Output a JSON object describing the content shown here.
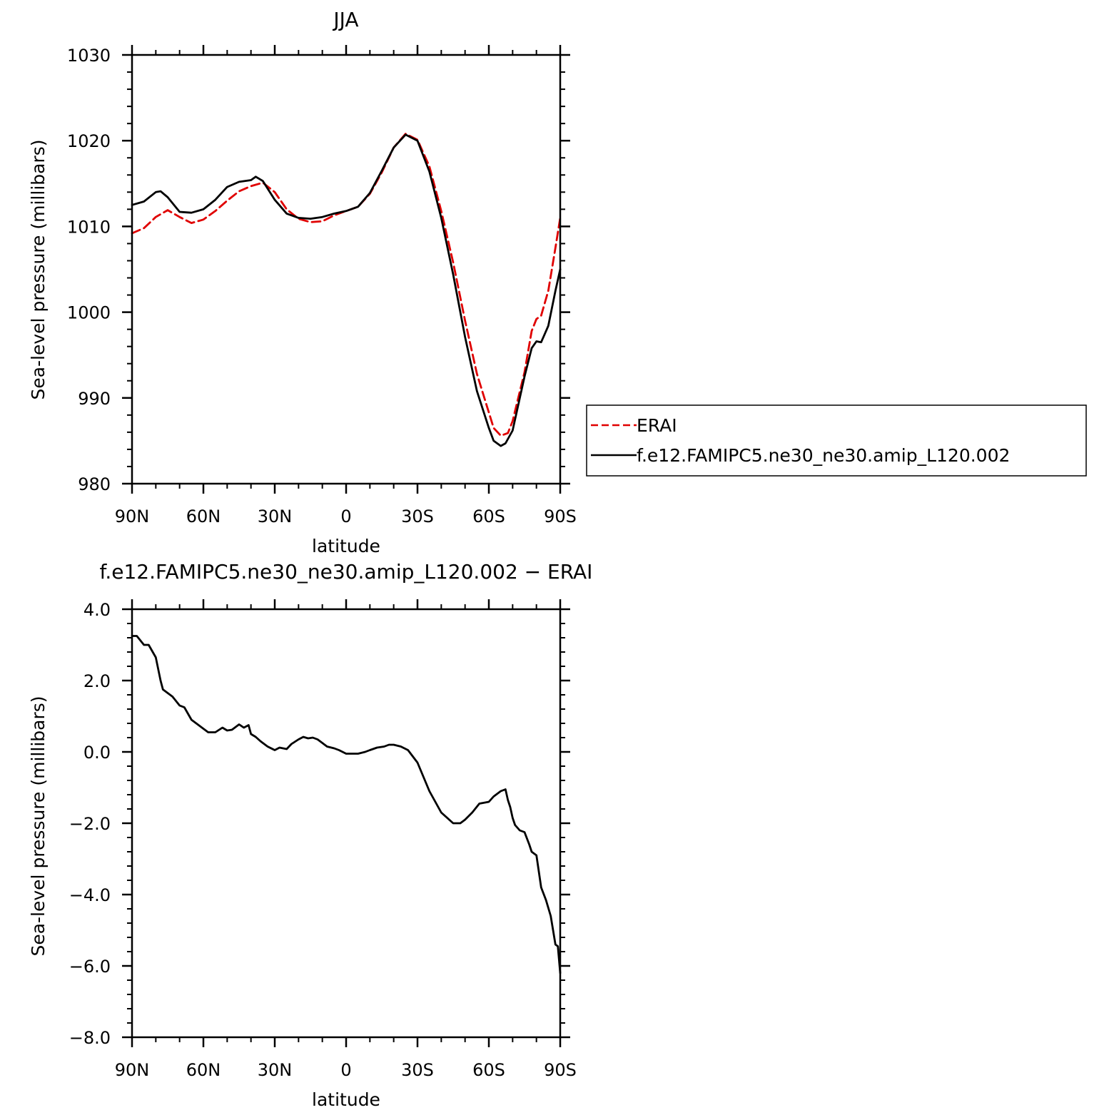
{
  "chart_data": [
    {
      "type": "line",
      "title": "JJA",
      "xlabel": "latitude",
      "ylabel": "Sea-level pressure (millibars)",
      "xlim": [
        90,
        -90
      ],
      "ylim": [
        980,
        1030
      ],
      "x_tick_values": [
        90,
        60,
        30,
        0,
        -30,
        -60,
        -90
      ],
      "x_tick_labels": [
        "90N",
        "60N",
        "30N",
        "0",
        "30S",
        "60S",
        "90S"
      ],
      "y_tick_values": [
        980,
        990,
        1000,
        1010,
        1020,
        1030
      ],
      "y_tick_labels": [
        "980",
        "990",
        "1000",
        "1010",
        "1020",
        "1030"
      ],
      "grid": false,
      "legend": "right",
      "series": [
        {
          "name": "ERAI",
          "color": "#e00000",
          "dash": true,
          "x": [
            90,
            85,
            80,
            75,
            70,
            65,
            60,
            55,
            50,
            45,
            40,
            35,
            30,
            25,
            20,
            15,
            10,
            5,
            0,
            -5,
            -10,
            -15,
            -20,
            -25,
            -30,
            -35,
            -40,
            -45,
            -50,
            -55,
            -60,
            -62,
            -65,
            -68,
            -70,
            -75,
            -78,
            -80,
            -82,
            -85,
            -88,
            -90
          ],
          "y": [
            1009.2,
            1009.8,
            1011.1,
            1011.9,
            1011.1,
            1010.4,
            1010.8,
            1011.8,
            1013.0,
            1014.1,
            1014.7,
            1015.1,
            1014.0,
            1012.0,
            1010.9,
            1010.5,
            1010.6,
            1011.3,
            1011.8,
            1012.3,
            1013.8,
            1016.3,
            1019.2,
            1020.8,
            1020.1,
            1017.0,
            1011.8,
            1005.8,
            999.0,
            992.8,
            988.3,
            986.5,
            985.6,
            985.9,
            987.3,
            993.0,
            997.8,
            999.2,
            999.6,
            1002.5,
            1007.5,
            1011.0
          ]
        },
        {
          "name": "f.e12.FAMIPC5.ne30_ne30.amip_L120.002",
          "color": "#000000",
          "dash": false,
          "x": [
            90,
            85,
            80,
            78,
            75,
            70,
            65,
            60,
            55,
            50,
            45,
            40,
            38,
            35,
            30,
            25,
            20,
            15,
            10,
            5,
            0,
            -5,
            -10,
            -15,
            -20,
            -25,
            -30,
            -35,
            -40,
            -45,
            -50,
            -55,
            -60,
            -62,
            -65,
            -67,
            -70,
            -75,
            -78,
            -80,
            -82,
            -85,
            -88,
            -90
          ],
          "y": [
            1012.5,
            1012.9,
            1014.0,
            1014.1,
            1013.4,
            1011.7,
            1011.6,
            1012.0,
            1013.1,
            1014.6,
            1015.2,
            1015.4,
            1015.8,
            1015.3,
            1013.1,
            1011.5,
            1011.0,
            1010.9,
            1011.1,
            1011.5,
            1011.8,
            1012.3,
            1013.9,
            1016.5,
            1019.2,
            1020.7,
            1020.0,
            1016.4,
            1011.0,
            1004.4,
            997.1,
            990.8,
            986.5,
            985.0,
            984.4,
            984.7,
            986.2,
            992.5,
            995.8,
            996.6,
            996.5,
            998.4,
            1002.5,
            1005.0
          ]
        }
      ]
    },
    {
      "type": "line",
      "title": "f.e12.FAMIPC5.ne30_ne30.amip_L120.002 − ERAI",
      "xlabel": "latitude",
      "ylabel": "Sea-level pressure (millibars)",
      "xlim": [
        90,
        -90
      ],
      "ylim": [
        -8.0,
        4.0
      ],
      "x_tick_values": [
        90,
        60,
        30,
        0,
        -30,
        -60,
        -90
      ],
      "x_tick_labels": [
        "90N",
        "60N",
        "30N",
        "0",
        "30S",
        "60S",
        "90S"
      ],
      "y_tick_values": [
        4.0,
        2.0,
        0.0,
        -2.0,
        -4.0,
        -6.0,
        -8.0
      ],
      "y_tick_labels": [
        "4.0",
        "2.0",
        "0.0",
        "−2.0",
        "−4.0",
        "−6.0",
        "−8.0"
      ],
      "grid": false,
      "series": [
        {
          "color": "#000000",
          "dash": false,
          "x": [
            90,
            88,
            85,
            83,
            80,
            78,
            77,
            75,
            73,
            70,
            68,
            65,
            63,
            60,
            58,
            55,
            52,
            50,
            48,
            45,
            43,
            41,
            40,
            38,
            36,
            35,
            33,
            30,
            28,
            25,
            23,
            20,
            18,
            16,
            14,
            12,
            10,
            8,
            5,
            3,
            0,
            -2,
            -5,
            -8,
            -10,
            -13,
            -16,
            -18,
            -20,
            -23,
            -26,
            -30,
            -35,
            -40,
            -45,
            -48,
            -50,
            -53,
            -56,
            -60,
            -62,
            -65,
            -67,
            -68,
            -69,
            -70,
            -71,
            -73,
            -75,
            -77,
            -78,
            -80,
            -82,
            -84,
            -86,
            -87,
            -88,
            -89,
            -90
          ],
          "y": [
            3.25,
            3.25,
            3.0,
            3.0,
            2.65,
            2.0,
            1.75,
            1.65,
            1.55,
            1.3,
            1.25,
            0.9,
            0.8,
            0.65,
            0.55,
            0.55,
            0.68,
            0.6,
            0.62,
            0.77,
            0.68,
            0.75,
            0.5,
            0.42,
            0.3,
            0.25,
            0.15,
            0.05,
            0.12,
            0.08,
            0.22,
            0.35,
            0.42,
            0.38,
            0.4,
            0.35,
            0.25,
            0.15,
            0.1,
            0.05,
            -0.05,
            -0.05,
            -0.05,
            0.0,
            0.05,
            0.12,
            0.15,
            0.2,
            0.2,
            0.15,
            0.05,
            -0.3,
            -1.1,
            -1.7,
            -2.0,
            -2.0,
            -1.9,
            -1.7,
            -1.45,
            -1.4,
            -1.25,
            -1.1,
            -1.05,
            -1.35,
            -1.55,
            -1.85,
            -2.05,
            -2.2,
            -2.25,
            -2.6,
            -2.8,
            -2.9,
            -3.8,
            -4.15,
            -4.6,
            -5.0,
            -5.4,
            -5.45,
            -6.2
          ]
        }
      ]
    }
  ]
}
